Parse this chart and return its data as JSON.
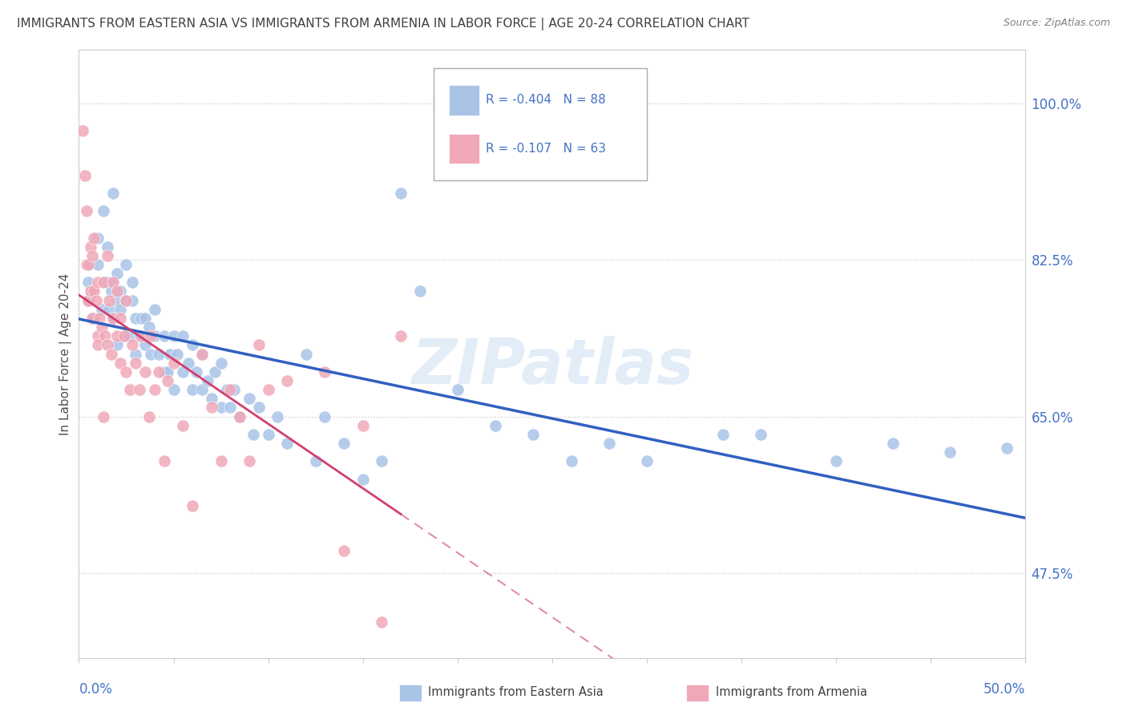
{
  "title": "IMMIGRANTS FROM EASTERN ASIA VS IMMIGRANTS FROM ARMENIA IN LABOR FORCE | AGE 20-24 CORRELATION CHART",
  "source": "Source: ZipAtlas.com",
  "ylabel": "In Labor Force | Age 20-24",
  "ytick_values": [
    0.475,
    0.65,
    0.825,
    1.0
  ],
  "ytick_labels": [
    "47.5%",
    "65.0%",
    "82.5%",
    "100.0%"
  ],
  "xlim": [
    0.0,
    50.0
  ],
  "ylim": [
    0.38,
    1.06
  ],
  "legend_r_blue": "-0.404",
  "legend_n_blue": "88",
  "legend_r_pink": "-0.107",
  "legend_n_pink": "63",
  "color_blue": "#aac4e8",
  "color_pink": "#f0a8b8",
  "line_color_blue": "#3060c0",
  "line_color_pink": "#d04070",
  "axis_label_color": "#4472c4",
  "title_color": "#404040",
  "watermark": "ZIPatlas",
  "blue_scatter": [
    [
      0.5,
      0.78
    ],
    [
      0.5,
      0.8
    ],
    [
      0.5,
      0.82
    ],
    [
      0.7,
      0.79
    ],
    [
      0.8,
      0.76
    ],
    [
      1.0,
      0.82
    ],
    [
      1.0,
      0.85
    ],
    [
      1.2,
      0.77
    ],
    [
      1.3,
      0.88
    ],
    [
      1.5,
      0.8
    ],
    [
      1.5,
      0.84
    ],
    [
      1.6,
      0.77
    ],
    [
      1.7,
      0.79
    ],
    [
      1.8,
      0.76
    ],
    [
      1.8,
      0.8
    ],
    [
      1.8,
      0.9
    ],
    [
      2.0,
      0.73
    ],
    [
      2.0,
      0.78
    ],
    [
      2.0,
      0.81
    ],
    [
      2.2,
      0.77
    ],
    [
      2.2,
      0.79
    ],
    [
      2.5,
      0.74
    ],
    [
      2.5,
      0.78
    ],
    [
      2.5,
      0.82
    ],
    [
      2.7,
      0.74
    ],
    [
      2.8,
      0.78
    ],
    [
      2.8,
      0.8
    ],
    [
      3.0,
      0.72
    ],
    [
      3.0,
      0.76
    ],
    [
      3.2,
      0.74
    ],
    [
      3.3,
      0.76
    ],
    [
      3.5,
      0.73
    ],
    [
      3.5,
      0.76
    ],
    [
      3.7,
      0.75
    ],
    [
      3.8,
      0.72
    ],
    [
      4.0,
      0.74
    ],
    [
      4.0,
      0.77
    ],
    [
      4.2,
      0.72
    ],
    [
      4.5,
      0.7
    ],
    [
      4.5,
      0.74
    ],
    [
      4.7,
      0.7
    ],
    [
      4.8,
      0.72
    ],
    [
      5.0,
      0.68
    ],
    [
      5.0,
      0.74
    ],
    [
      5.2,
      0.72
    ],
    [
      5.5,
      0.7
    ],
    [
      5.5,
      0.74
    ],
    [
      5.8,
      0.71
    ],
    [
      6.0,
      0.68
    ],
    [
      6.0,
      0.73
    ],
    [
      6.2,
      0.7
    ],
    [
      6.5,
      0.68
    ],
    [
      6.5,
      0.72
    ],
    [
      6.8,
      0.69
    ],
    [
      7.0,
      0.67
    ],
    [
      7.2,
      0.7
    ],
    [
      7.5,
      0.66
    ],
    [
      7.5,
      0.71
    ],
    [
      7.8,
      0.68
    ],
    [
      8.0,
      0.66
    ],
    [
      8.2,
      0.68
    ],
    [
      8.5,
      0.65
    ],
    [
      9.0,
      0.67
    ],
    [
      9.2,
      0.63
    ],
    [
      9.5,
      0.66
    ],
    [
      10.0,
      0.63
    ],
    [
      10.5,
      0.65
    ],
    [
      11.0,
      0.62
    ],
    [
      12.0,
      0.72
    ],
    [
      12.5,
      0.6
    ],
    [
      13.0,
      0.65
    ],
    [
      14.0,
      0.62
    ],
    [
      15.0,
      0.58
    ],
    [
      16.0,
      0.6
    ],
    [
      17.0,
      0.9
    ],
    [
      18.0,
      0.79
    ],
    [
      20.0,
      0.68
    ],
    [
      22.0,
      0.64
    ],
    [
      24.0,
      0.63
    ],
    [
      26.0,
      0.6
    ],
    [
      28.0,
      0.62
    ],
    [
      30.0,
      0.6
    ],
    [
      34.0,
      0.63
    ],
    [
      36.0,
      0.63
    ],
    [
      40.0,
      0.6
    ],
    [
      43.0,
      0.62
    ],
    [
      46.0,
      0.61
    ],
    [
      49.0,
      0.615
    ]
  ],
  "pink_scatter": [
    [
      0.2,
      0.97
    ],
    [
      0.3,
      0.92
    ],
    [
      0.4,
      0.82
    ],
    [
      0.4,
      0.88
    ],
    [
      0.5,
      0.78
    ],
    [
      0.5,
      0.82
    ],
    [
      0.6,
      0.79
    ],
    [
      0.6,
      0.84
    ],
    [
      0.7,
      0.76
    ],
    [
      0.7,
      0.83
    ],
    [
      0.8,
      0.79
    ],
    [
      0.8,
      0.85
    ],
    [
      0.9,
      0.78
    ],
    [
      1.0,
      0.74
    ],
    [
      1.0,
      0.8
    ],
    [
      1.0,
      0.73
    ],
    [
      1.1,
      0.76
    ],
    [
      1.2,
      0.75
    ],
    [
      1.3,
      0.65
    ],
    [
      1.3,
      0.8
    ],
    [
      1.4,
      0.74
    ],
    [
      1.5,
      0.73
    ],
    [
      1.5,
      0.83
    ],
    [
      1.6,
      0.78
    ],
    [
      1.7,
      0.72
    ],
    [
      1.8,
      0.76
    ],
    [
      1.8,
      0.8
    ],
    [
      2.0,
      0.74
    ],
    [
      2.0,
      0.79
    ],
    [
      2.2,
      0.71
    ],
    [
      2.2,
      0.76
    ],
    [
      2.4,
      0.74
    ],
    [
      2.5,
      0.7
    ],
    [
      2.5,
      0.78
    ],
    [
      2.7,
      0.68
    ],
    [
      2.8,
      0.73
    ],
    [
      3.0,
      0.71
    ],
    [
      3.2,
      0.68
    ],
    [
      3.3,
      0.74
    ],
    [
      3.5,
      0.7
    ],
    [
      3.7,
      0.65
    ],
    [
      3.8,
      0.74
    ],
    [
      4.0,
      0.68
    ],
    [
      4.2,
      0.7
    ],
    [
      4.5,
      0.6
    ],
    [
      4.7,
      0.69
    ],
    [
      5.0,
      0.71
    ],
    [
      5.5,
      0.64
    ],
    [
      6.0,
      0.55
    ],
    [
      6.5,
      0.72
    ],
    [
      7.0,
      0.66
    ],
    [
      7.5,
      0.6
    ],
    [
      8.0,
      0.68
    ],
    [
      8.5,
      0.65
    ],
    [
      9.0,
      0.6
    ],
    [
      9.5,
      0.73
    ],
    [
      10.0,
      0.68
    ],
    [
      11.0,
      0.69
    ],
    [
      13.0,
      0.7
    ],
    [
      14.0,
      0.5
    ],
    [
      15.0,
      0.64
    ],
    [
      16.0,
      0.42
    ],
    [
      17.0,
      0.74
    ]
  ],
  "pink_line_solid_end": 17.0
}
